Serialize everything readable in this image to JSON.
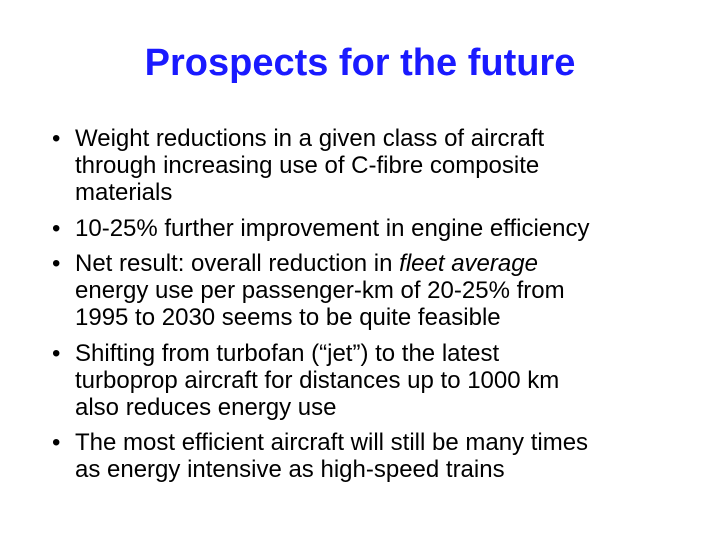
{
  "title": "Prospects for the future",
  "bullets": [
    [
      "Weight reductions in a given class of aircraft",
      "through increasing use of C-fibre composite",
      "materials"
    ],
    [
      "10-25% further improvement in engine efficiency"
    ],
    [
      {
        "text": "Net result: overall reduction in ",
        "emphasis": "fleet average"
      },
      "energy use per passenger-km of 20-25% from",
      "1995 to 2030 seems to be quite feasible"
    ],
    [
      "Shifting from turbofan (“jet”) to the latest",
      "turboprop aircraft for distances up to 1000 km",
      "also reduces energy use"
    ],
    [
      "The most efficient aircraft will still be many times",
      "as energy intensive as high-speed trains"
    ]
  ]
}
